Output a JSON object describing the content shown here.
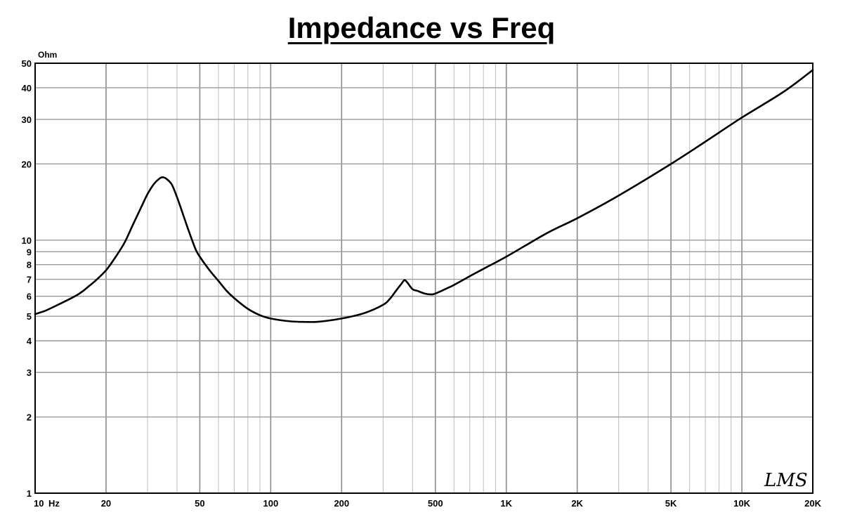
{
  "chart_data": {
    "type": "line",
    "title": "Impedance vs Freq",
    "ylabel": "Ohm",
    "xlabel_unit": "Hz",
    "x_scale": "log",
    "y_scale": "log",
    "xlim": [
      10,
      20000
    ],
    "ylim": [
      1,
      50
    ],
    "grid": true,
    "x_ticks": [
      {
        "value": 10,
        "label": "10"
      },
      {
        "value": 20,
        "label": "20"
      },
      {
        "value": 50,
        "label": "50"
      },
      {
        "value": 100,
        "label": "100"
      },
      {
        "value": 200,
        "label": "200"
      },
      {
        "value": 500,
        "label": "500"
      },
      {
        "value": 1000,
        "label": "1K"
      },
      {
        "value": 2000,
        "label": "2K"
      },
      {
        "value": 5000,
        "label": "5K"
      },
      {
        "value": 10000,
        "label": "10K"
      },
      {
        "value": 20000,
        "label": "20K"
      }
    ],
    "y_ticks": [
      {
        "value": 1,
        "label": "1"
      },
      {
        "value": 2,
        "label": "2"
      },
      {
        "value": 3,
        "label": "3"
      },
      {
        "value": 4,
        "label": "4"
      },
      {
        "value": 5,
        "label": "5"
      },
      {
        "value": 6,
        "label": "6"
      },
      {
        "value": 7,
        "label": "7"
      },
      {
        "value": 8,
        "label": "8"
      },
      {
        "value": 9,
        "label": "9"
      },
      {
        "value": 10,
        "label": "10"
      },
      {
        "value": 20,
        "label": "20"
      },
      {
        "value": 30,
        "label": "30"
      },
      {
        "value": 40,
        "label": "40"
      },
      {
        "value": 50,
        "label": "50"
      }
    ],
    "series": [
      {
        "color": "#000000",
        "x": [
          10,
          11,
          12,
          13,
          14,
          15,
          16,
          17,
          18,
          20,
          22,
          24,
          26,
          28,
          30,
          32,
          34,
          35,
          36,
          38,
          40,
          42,
          45,
          48,
          50,
          55,
          60,
          65,
          70,
          80,
          90,
          100,
          120,
          140,
          160,
          200,
          250,
          300,
          320,
          340,
          360,
          370,
          380,
          400,
          420,
          450,
          480,
          500,
          550,
          600,
          700,
          800,
          1000,
          1500,
          2000,
          3000,
          5000,
          7000,
          10000,
          15000,
          20000
        ],
        "y": [
          5.1,
          5.25,
          5.45,
          5.65,
          5.85,
          6.05,
          6.3,
          6.6,
          6.9,
          7.6,
          8.6,
          9.8,
          11.5,
          13.3,
          15.2,
          16.7,
          17.6,
          17.7,
          17.5,
          16.6,
          14.8,
          13.0,
          10.8,
          9.2,
          8.6,
          7.6,
          6.9,
          6.3,
          5.9,
          5.35,
          5.05,
          4.9,
          4.78,
          4.75,
          4.76,
          4.9,
          5.15,
          5.55,
          5.85,
          6.3,
          6.75,
          6.95,
          6.8,
          6.4,
          6.3,
          6.15,
          6.1,
          6.15,
          6.4,
          6.65,
          7.2,
          7.7,
          8.6,
          10.7,
          12.2,
          15.0,
          20.0,
          24.5,
          30.5,
          38.5,
          47.0
        ]
      }
    ]
  },
  "logo_text": "LMS"
}
